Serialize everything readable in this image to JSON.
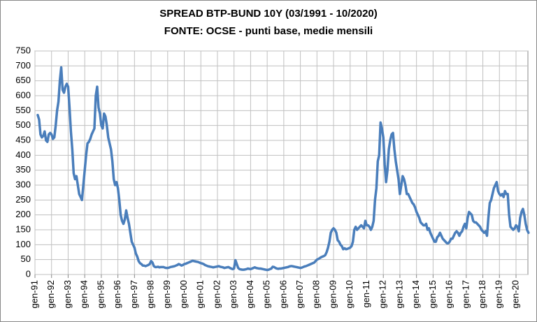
{
  "chart_data": {
    "type": "line",
    "title": "SPREAD BTP-BUND 10Y (03/1991 - 10/2020)",
    "subtitle": "FONTE: OCSE - punti base, medie mensili",
    "categories": [
      "gen-91",
      null,
      null,
      null,
      null,
      null,
      null,
      null,
      null,
      null,
      null,
      null,
      "gen-92",
      null,
      null,
      null,
      null,
      null,
      null,
      null,
      null,
      null,
      null,
      null,
      "gen-93",
      null,
      null,
      null,
      null,
      null,
      null,
      null,
      null,
      null,
      null,
      null,
      "gen-94",
      null,
      null,
      null,
      null,
      null,
      null,
      null,
      null,
      null,
      null,
      null,
      "gen-95",
      null,
      null,
      null,
      null,
      null,
      null,
      null,
      null,
      null,
      null,
      null,
      "gen-96",
      null,
      null,
      null,
      null,
      null,
      null,
      null,
      null,
      null,
      null,
      null,
      "gen-97",
      null,
      null,
      null,
      null,
      null,
      null,
      null,
      null,
      null,
      null,
      null,
      "gen-98",
      null,
      null,
      null,
      null,
      null,
      null,
      null,
      null,
      null,
      null,
      null,
      "gen-99",
      null,
      null,
      null,
      null,
      null,
      null,
      null,
      null,
      null,
      null,
      null,
      "gen-00",
      null,
      null,
      null,
      null,
      null,
      null,
      null,
      null,
      null,
      null,
      null,
      "gen-01",
      null,
      null,
      null,
      null,
      null,
      null,
      null,
      null,
      null,
      null,
      null,
      "gen-02",
      null,
      null,
      null,
      null,
      null,
      null,
      null,
      null,
      null,
      null,
      null,
      "gen-03",
      null,
      null,
      null,
      null,
      null,
      null,
      null,
      null,
      null,
      null,
      null,
      "gen-04",
      null,
      null,
      null,
      null,
      null,
      null,
      null,
      null,
      null,
      null,
      null,
      "gen-05",
      null,
      null,
      null,
      null,
      null,
      null,
      null,
      null,
      null,
      null,
      null,
      "gen-06",
      null,
      null,
      null,
      null,
      null,
      null,
      null,
      null,
      null,
      null,
      null,
      "gen-07",
      null,
      null,
      null,
      null,
      null,
      null,
      null,
      null,
      null,
      null,
      null,
      "gen-08",
      null,
      null,
      null,
      null,
      null,
      null,
      null,
      null,
      null,
      null,
      null,
      "gen-09",
      null,
      null,
      null,
      null,
      null,
      null,
      null,
      null,
      null,
      null,
      null,
      "gen-10",
      null,
      null,
      null,
      null,
      null,
      null,
      null,
      null,
      null,
      null,
      null,
      "gen-11",
      null,
      null,
      null,
      null,
      null,
      null,
      null,
      null,
      null,
      null,
      null,
      "gen-12",
      null,
      null,
      null,
      null,
      null,
      null,
      null,
      null,
      null,
      null,
      null,
      "gen-13",
      null,
      null,
      null,
      null,
      null,
      null,
      null,
      null,
      null,
      null,
      null,
      "gen-14",
      null,
      null,
      null,
      null,
      null,
      null,
      null,
      null,
      null,
      null,
      null,
      "gen-15",
      null,
      null,
      null,
      null,
      null,
      null,
      null,
      null,
      null,
      null,
      null,
      "gen-16",
      null,
      null,
      null,
      null,
      null,
      null,
      null,
      null,
      null,
      null,
      null,
      "gen-17",
      null,
      null,
      null,
      null,
      null,
      null,
      null,
      null,
      null,
      null,
      null,
      "gen-18",
      null,
      null,
      null,
      null,
      null,
      null,
      null,
      null,
      null,
      null,
      null,
      "gen-19",
      null,
      null,
      null,
      null,
      null,
      null,
      null,
      null,
      null,
      null,
      null,
      "gen-20",
      null,
      null,
      null,
      null,
      null,
      null,
      null,
      null,
      null
    ],
    "series": [
      {
        "color": "#4a7ebb",
        "values": [
          null,
          null,
          535,
          520,
          470,
          460,
          465,
          480,
          450,
          445,
          470,
          475,
          470,
          455,
          460,
          500,
          550,
          580,
          650,
          695,
          620,
          610,
          630,
          640,
          630,
          560,
          480,
          420,
          340,
          320,
          330,
          300,
          270,
          260,
          250,
          300,
          350,
          400,
          440,
          445,
          455,
          470,
          480,
          490,
          600,
          630,
          560,
          540,
          500,
          490,
          540,
          530,
          500,
          460,
          440,
          420,
          380,
          320,
          300,
          310,
          290,
          250,
          200,
          180,
          170,
          185,
          215,
          190,
          170,
          140,
          110,
          100,
          90,
          70,
          60,
          45,
          38,
          35,
          30,
          30,
          28,
          30,
          32,
          35,
          45,
          40,
          28,
          25,
          25,
          26,
          24,
          25,
          25,
          25,
          23,
          22,
          22,
          23,
          25,
          26,
          27,
          28,
          30,
          32,
          35,
          33,
          30,
          32,
          35,
          36,
          38,
          40,
          42,
          44,
          46,
          45,
          44,
          43,
          42,
          40,
          38,
          37,
          35,
          32,
          30,
          28,
          27,
          26,
          25,
          24,
          25,
          26,
          27,
          28,
          26,
          25,
          24,
          22,
          23,
          24,
          25,
          22,
          20,
          18,
          20,
          48,
          35,
          22,
          18,
          17,
          16,
          16,
          17,
          18,
          20,
          19,
          18,
          20,
          22,
          24,
          22,
          21,
          20,
          20,
          19,
          18,
          17,
          16,
          15,
          16,
          18,
          20,
          26,
          25,
          22,
          20,
          19,
          20,
          20,
          21,
          22,
          23,
          24,
          25,
          27,
          28,
          28,
          27,
          26,
          25,
          24,
          23,
          22,
          23,
          25,
          27,
          28,
          30,
          32,
          34,
          36,
          38,
          40,
          45,
          50,
          52,
          55,
          58,
          60,
          62,
          65,
          75,
          90,
          110,
          140,
          150,
          155,
          150,
          140,
          115,
          110,
          100,
          95,
          85,
          88,
          85,
          86,
          88,
          90,
          95,
          110,
          150,
          160,
          150,
          155,
          160,
          165,
          160,
          155,
          180,
          165,
          165,
          160,
          150,
          160,
          180,
          250,
          290,
          380,
          400,
          510,
          490,
          460,
          370,
          310,
          350,
          420,
          450,
          470,
          475,
          420,
          380,
          350,
          320,
          270,
          300,
          330,
          320,
          300,
          270,
          270,
          260,
          250,
          240,
          235,
          225,
          210,
          200,
          190,
          175,
          170,
          165,
          165,
          170,
          150,
          155,
          140,
          130,
          120,
          110,
          110,
          125,
          130,
          140,
          130,
          120,
          115,
          110,
          105,
          105,
          110,
          120,
          120,
          130,
          140,
          145,
          140,
          130,
          140,
          145,
          160,
          170,
          155,
          190,
          210,
          205,
          200,
          180,
          175,
          175,
          170,
          165,
          160,
          150,
          145,
          140,
          145,
          130,
          190,
          240,
          250,
          270,
          290,
          300,
          310,
          280,
          270,
          265,
          270,
          260,
          280,
          270,
          270,
          200,
          160,
          155,
          150,
          155,
          165,
          160,
          145,
          190,
          210,
          220,
          200,
          170,
          150,
          140
        ]
      }
    ],
    "ylim": [
      0,
      750
    ],
    "yticks": [
      0,
      50,
      100,
      150,
      200,
      250,
      300,
      350,
      400,
      450,
      500,
      550,
      600,
      650,
      700,
      750
    ],
    "grid": true
  }
}
